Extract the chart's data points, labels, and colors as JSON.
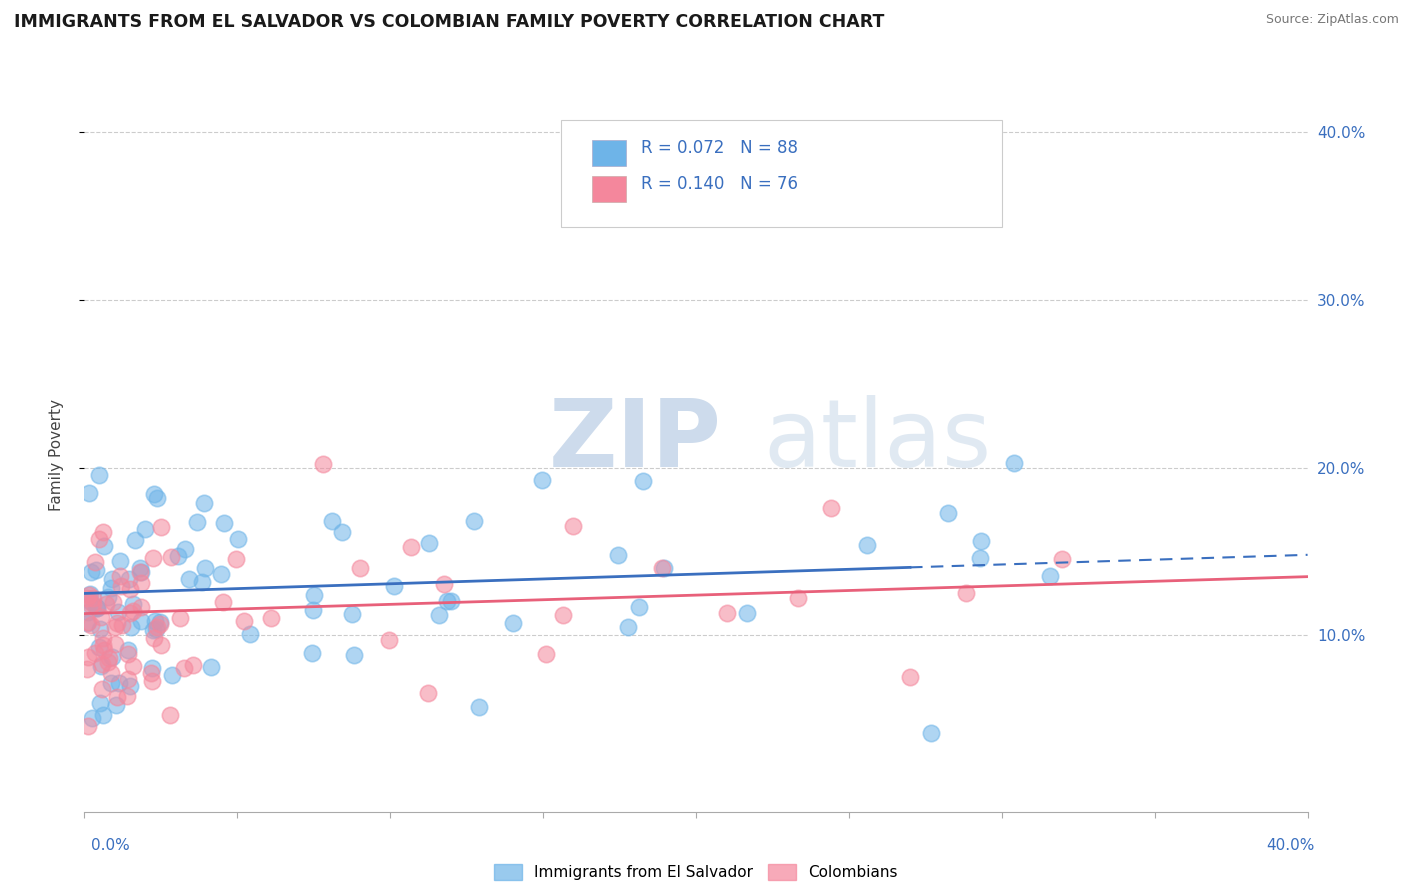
{
  "title": "IMMIGRANTS FROM EL SALVADOR VS COLOMBIAN FAMILY POVERTY CORRELATION CHART",
  "source": "Source: ZipAtlas.com",
  "ylabel": "Family Poverty",
  "legend_label1": "Immigrants from El Salvador",
  "legend_label2": "Colombians",
  "r1": 0.072,
  "n1": 88,
  "r2": 0.14,
  "n2": 76,
  "color1": "#6EB4E8",
  "color2": "#F4879C",
  "line_color1": "#3A6FBF",
  "line_color2": "#E8607A",
  "background_color": "#FFFFFF",
  "xlim": [
    0.0,
    0.4
  ],
  "ylim": [
    -0.005,
    0.42
  ],
  "yticks": [
    0.1,
    0.2,
    0.3,
    0.4
  ],
  "ytick_labels": [
    "10.0%",
    "20.0%",
    "30.0%",
    "40.0%"
  ],
  "watermark_zip": "ZIP",
  "watermark_atlas": "atlas",
  "blue_line_solid_end": 0.27,
  "blue_line_y_start": 0.125,
  "blue_line_y_end": 0.148,
  "pink_line_y_start": 0.113,
  "pink_line_y_end": 0.135
}
